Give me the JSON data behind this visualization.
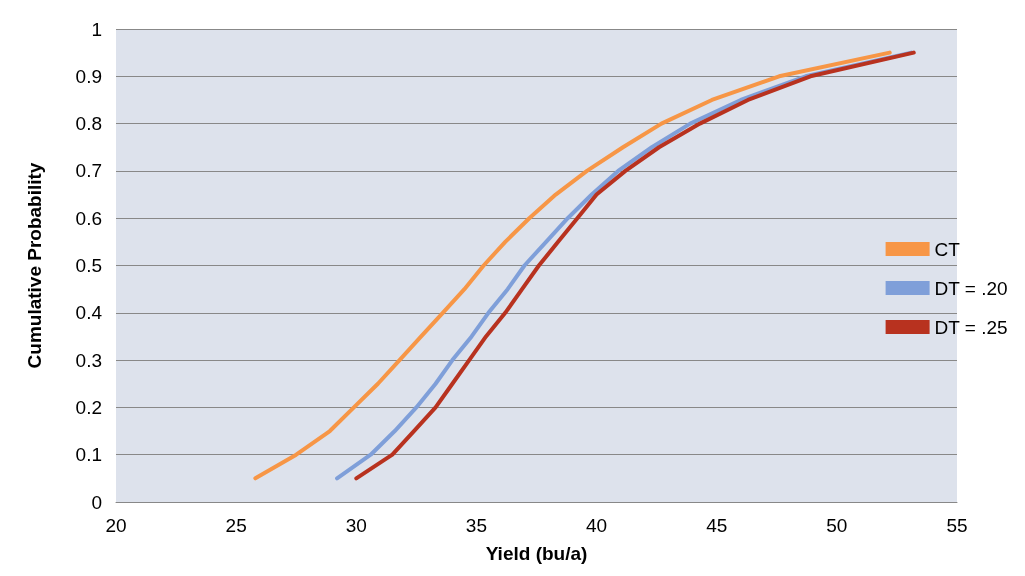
{
  "chart_data": {
    "type": "line",
    "xlabel": "Yield (bu/a)",
    "ylabel": "Cumulative Probability",
    "xlim": [
      20,
      55
    ],
    "xticks": [
      20,
      25,
      30,
      35,
      40,
      45,
      50,
      55
    ],
    "ylim": [
      0,
      1
    ],
    "yticks": [
      0,
      0.1,
      0.2,
      0.3,
      0.4,
      0.5,
      0.6,
      0.7,
      0.8,
      0.9,
      1
    ],
    "grid": "y",
    "legend": "right",
    "marker": "none",
    "line_style": "solid",
    "series": [
      {
        "name": "CT",
        "color": "#f79646",
        "x": [
          25.8,
          27.5,
          28.9,
          29.9,
          30.9,
          31.8,
          32.7,
          33.6,
          34.5,
          35.3,
          36.2,
          37.2,
          38.3,
          39.6,
          41.1,
          42.7,
          44.8,
          47.6,
          52.2
        ],
        "values": [
          0.05,
          0.1,
          0.15,
          0.2,
          0.25,
          0.3,
          0.35,
          0.4,
          0.45,
          0.5,
          0.55,
          0.6,
          0.65,
          0.7,
          0.75,
          0.8,
          0.85,
          0.9,
          0.95
        ]
      },
      {
        "name": "DT = .20",
        "color": "#7f9fd9",
        "x": [
          29.2,
          30.6,
          31.6,
          32.5,
          33.3,
          34.0,
          34.8,
          35.5,
          36.3,
          37.0,
          37.9,
          38.8,
          39.8,
          40.9,
          42.3,
          43.9,
          46.0,
          48.7,
          53.1
        ],
        "values": [
          0.05,
          0.1,
          0.15,
          0.2,
          0.25,
          0.3,
          0.35,
          0.4,
          0.45,
          0.5,
          0.55,
          0.6,
          0.65,
          0.7,
          0.75,
          0.8,
          0.85,
          0.9,
          0.95
        ]
      },
      {
        "name": "DT = .25",
        "color": "#b8321f",
        "x": [
          30.0,
          31.5,
          32.4,
          33.3,
          34.0,
          34.7,
          35.4,
          36.2,
          36.9,
          37.6,
          38.4,
          39.2,
          40.0,
          41.2,
          42.6,
          44.3,
          46.3,
          48.9,
          53.2
        ],
        "values": [
          0.05,
          0.1,
          0.15,
          0.2,
          0.25,
          0.3,
          0.35,
          0.4,
          0.45,
          0.5,
          0.55,
          0.6,
          0.65,
          0.7,
          0.75,
          0.8,
          0.85,
          0.9,
          0.95
        ]
      }
    ]
  }
}
